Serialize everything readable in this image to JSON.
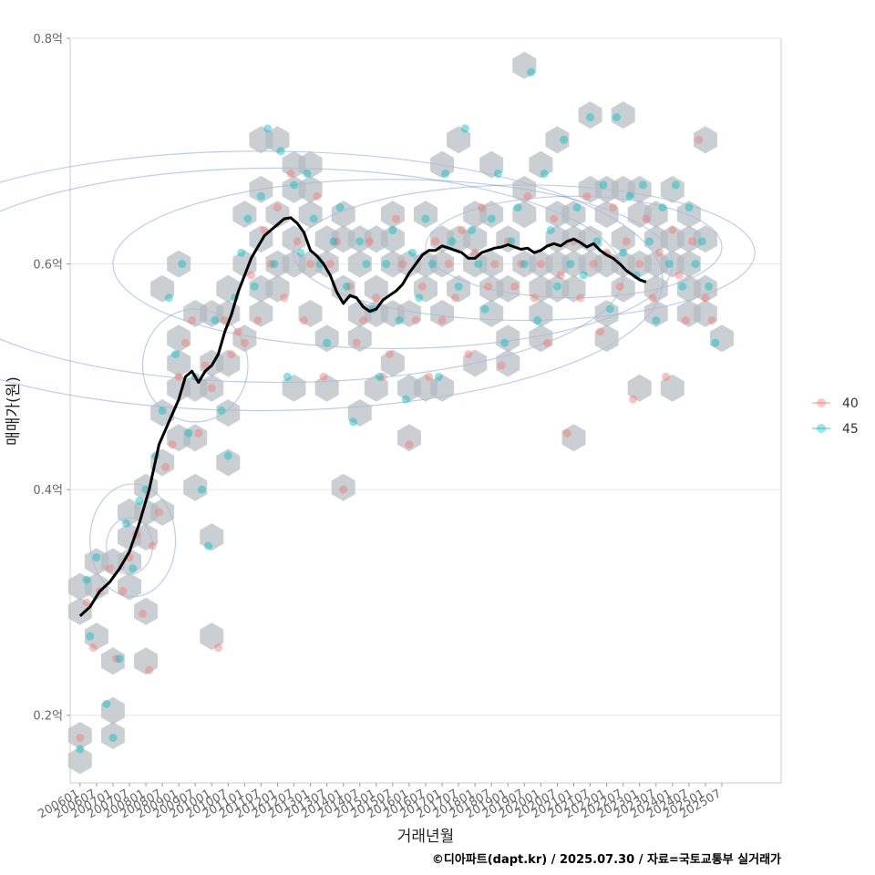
{
  "chart_data": {
    "type": "scatter",
    "title": "",
    "xlabel": "거래년월",
    "ylabel": "매매가(원)",
    "caption": "©디아파트(dapt.kr) / 2025.07.30 / 자료=국토교통부 실거래가",
    "ylim": [
      0.14,
      0.8
    ],
    "xlim": [
      2005.7,
      2027.3
    ],
    "y_ticks": [
      {
        "value": 0.2,
        "label": "0.2억"
      },
      {
        "value": 0.4,
        "label": "0.4억"
      },
      {
        "value": 0.6,
        "label": "0.6억"
      },
      {
        "value": 0.8,
        "label": "0.8억"
      }
    ],
    "x_ticks": [
      "200601",
      "200607",
      "200701",
      "200707",
      "200801",
      "200807",
      "200901",
      "200907",
      "201001",
      "201007",
      "201101",
      "201107",
      "201201",
      "201207",
      "201301",
      "201307",
      "201401",
      "201407",
      "201501",
      "201507",
      "201601",
      "201607",
      "201701",
      "201707",
      "201801",
      "201807",
      "201901",
      "201907",
      "202001",
      "202007",
      "202101",
      "202107",
      "202201",
      "202207",
      "202301",
      "202307",
      "202401",
      "202407",
      "202501",
      "202507"
    ],
    "legend": {
      "position": "right",
      "entries": [
        {
          "name": "40",
          "color": "#F8766D"
        },
        {
          "name": "45",
          "color": "#00BFC4"
        }
      ]
    },
    "series": [
      {
        "name": "40",
        "color": "#F8766D",
        "points": [
          [
            2006.0,
            0.18
          ],
          [
            2006.2,
            0.3
          ],
          [
            2006.4,
            0.26
          ],
          [
            2006.6,
            0.31
          ],
          [
            2006.9,
            0.33
          ],
          [
            2007.1,
            0.25
          ],
          [
            2007.3,
            0.31
          ],
          [
            2007.5,
            0.34
          ],
          [
            2007.7,
            0.36
          ],
          [
            2007.9,
            0.29
          ],
          [
            2008.1,
            0.24
          ],
          [
            2008.2,
            0.35
          ],
          [
            2008.4,
            0.38
          ],
          [
            2008.6,
            0.42
          ],
          [
            2008.8,
            0.44
          ],
          [
            2009.0,
            0.5
          ],
          [
            2009.2,
            0.53
          ],
          [
            2009.4,
            0.55
          ],
          [
            2009.6,
            0.45
          ],
          [
            2009.8,
            0.51
          ],
          [
            2010.0,
            0.49
          ],
          [
            2010.2,
            0.26
          ],
          [
            2010.4,
            0.55
          ],
          [
            2010.6,
            0.52
          ],
          [
            2010.8,
            0.54
          ],
          [
            2011.0,
            0.53
          ],
          [
            2011.2,
            0.59
          ],
          [
            2011.4,
            0.55
          ],
          [
            2011.6,
            0.63
          ],
          [
            2011.8,
            0.6
          ],
          [
            2012.0,
            0.65
          ],
          [
            2012.2,
            0.57
          ],
          [
            2012.4,
            0.68
          ],
          [
            2012.6,
            0.62
          ],
          [
            2012.8,
            0.55
          ],
          [
            2013.0,
            0.6
          ],
          [
            2013.2,
            0.66
          ],
          [
            2013.4,
            0.5
          ],
          [
            2013.6,
            0.6
          ],
          [
            2013.8,
            0.62
          ],
          [
            2014.0,
            0.4
          ],
          [
            2014.2,
            0.58
          ],
          [
            2014.4,
            0.53
          ],
          [
            2014.6,
            0.55
          ],
          [
            2014.8,
            0.62
          ],
          [
            2015.0,
            0.57
          ],
          [
            2015.2,
            0.5
          ],
          [
            2015.4,
            0.52
          ],
          [
            2015.6,
            0.64
          ],
          [
            2015.8,
            0.6
          ],
          [
            2016.0,
            0.44
          ],
          [
            2016.2,
            0.55
          ],
          [
            2016.4,
            0.58
          ],
          [
            2016.6,
            0.5
          ],
          [
            2016.8,
            0.62
          ],
          [
            2017.0,
            0.55
          ],
          [
            2017.2,
            0.6
          ],
          [
            2017.4,
            0.57
          ],
          [
            2017.6,
            0.63
          ],
          [
            2017.8,
            0.52
          ],
          [
            2018.0,
            0.61
          ],
          [
            2018.2,
            0.65
          ],
          [
            2018.4,
            0.58
          ],
          [
            2018.6,
            0.6
          ],
          [
            2018.8,
            0.51
          ],
          [
            2019.0,
            0.62
          ],
          [
            2019.2,
            0.58
          ],
          [
            2019.4,
            0.6
          ],
          [
            2019.6,
            0.66
          ],
          [
            2019.8,
            0.57
          ],
          [
            2020.0,
            0.6
          ],
          [
            2020.2,
            0.53
          ],
          [
            2020.4,
            0.64
          ],
          [
            2020.6,
            0.59
          ],
          [
            2020.8,
            0.45
          ],
          [
            2021.0,
            0.62
          ],
          [
            2021.2,
            0.57
          ],
          [
            2021.4,
            0.66
          ],
          [
            2021.6,
            0.6
          ],
          [
            2021.8,
            0.54
          ],
          [
            2022.0,
            0.61
          ],
          [
            2022.2,
            0.65
          ],
          [
            2022.4,
            0.58
          ],
          [
            2022.6,
            0.62
          ],
          [
            2022.8,
            0.48
          ],
          [
            2023.0,
            0.6
          ],
          [
            2023.2,
            0.64
          ],
          [
            2023.4,
            0.57
          ],
          [
            2023.6,
            0.61
          ],
          [
            2023.8,
            0.5
          ],
          [
            2024.0,
            0.63
          ],
          [
            2024.2,
            0.59
          ],
          [
            2024.4,
            0.55
          ],
          [
            2024.6,
            0.62
          ],
          [
            2024.8,
            0.71
          ],
          [
            2025.0,
            0.57
          ],
          [
            2025.2,
            0.55
          ]
        ]
      },
      {
        "name": "45",
        "color": "#00BFC4",
        "points": [
          [
            2006.0,
            0.17
          ],
          [
            2006.2,
            0.32
          ],
          [
            2006.3,
            0.27
          ],
          [
            2006.5,
            0.34
          ],
          [
            2006.8,
            0.21
          ],
          [
            2007.0,
            0.18
          ],
          [
            2007.2,
            0.25
          ],
          [
            2007.4,
            0.37
          ],
          [
            2007.6,
            0.33
          ],
          [
            2007.8,
            0.39
          ],
          [
            2008.0,
            0.4
          ],
          [
            2008.3,
            0.43
          ],
          [
            2008.5,
            0.47
          ],
          [
            2008.7,
            0.57
          ],
          [
            2008.9,
            0.52
          ],
          [
            2009.1,
            0.6
          ],
          [
            2009.3,
            0.45
          ],
          [
            2009.5,
            0.5
          ],
          [
            2009.7,
            0.4
          ],
          [
            2009.9,
            0.35
          ],
          [
            2010.1,
            0.55
          ],
          [
            2010.3,
            0.47
          ],
          [
            2010.5,
            0.43
          ],
          [
            2010.7,
            0.57
          ],
          [
            2010.9,
            0.61
          ],
          [
            2011.1,
            0.64
          ],
          [
            2011.3,
            0.58
          ],
          [
            2011.5,
            0.66
          ],
          [
            2011.7,
            0.72
          ],
          [
            2011.9,
            0.6
          ],
          [
            2012.1,
            0.7
          ],
          [
            2012.3,
            0.5
          ],
          [
            2012.5,
            0.67
          ],
          [
            2012.7,
            0.61
          ],
          [
            2012.9,
            0.68
          ],
          [
            2013.1,
            0.64
          ],
          [
            2013.3,
            0.6
          ],
          [
            2013.5,
            0.53
          ],
          [
            2013.7,
            0.62
          ],
          [
            2013.9,
            0.65
          ],
          [
            2014.1,
            0.58
          ],
          [
            2014.3,
            0.46
          ],
          [
            2014.5,
            0.62
          ],
          [
            2014.7,
            0.6
          ],
          [
            2014.9,
            0.56
          ],
          [
            2015.1,
            0.5
          ],
          [
            2015.3,
            0.6
          ],
          [
            2015.5,
            0.63
          ],
          [
            2015.7,
            0.55
          ],
          [
            2015.9,
            0.48
          ],
          [
            2016.1,
            0.61
          ],
          [
            2016.3,
            0.57
          ],
          [
            2016.5,
            0.64
          ],
          [
            2016.7,
            0.6
          ],
          [
            2016.9,
            0.5
          ],
          [
            2017.1,
            0.68
          ],
          [
            2017.3,
            0.62
          ],
          [
            2017.5,
            0.58
          ],
          [
            2017.7,
            0.72
          ],
          [
            2017.9,
            0.63
          ],
          [
            2018.1,
            0.6
          ],
          [
            2018.3,
            0.56
          ],
          [
            2018.5,
            0.64
          ],
          [
            2018.7,
            0.68
          ],
          [
            2018.9,
            0.53
          ],
          [
            2019.1,
            0.62
          ],
          [
            2019.3,
            0.65
          ],
          [
            2019.5,
            0.6
          ],
          [
            2019.7,
            0.77
          ],
          [
            2019.9,
            0.55
          ],
          [
            2020.1,
            0.68
          ],
          [
            2020.3,
            0.63
          ],
          [
            2020.5,
            0.58
          ],
          [
            2020.7,
            0.71
          ],
          [
            2020.9,
            0.6
          ],
          [
            2021.1,
            0.65
          ],
          [
            2021.3,
            0.59
          ],
          [
            2021.5,
            0.73
          ],
          [
            2021.7,
            0.62
          ],
          [
            2021.9,
            0.67
          ],
          [
            2022.1,
            0.56
          ],
          [
            2022.3,
            0.73
          ],
          [
            2022.5,
            0.61
          ],
          [
            2022.7,
            0.66
          ],
          [
            2022.9,
            0.59
          ],
          [
            2023.1,
            0.67
          ],
          [
            2023.3,
            0.62
          ],
          [
            2023.5,
            0.55
          ],
          [
            2023.7,
            0.65
          ],
          [
            2023.9,
            0.6
          ],
          [
            2024.1,
            0.67
          ],
          [
            2024.3,
            0.58
          ],
          [
            2024.5,
            0.65
          ],
          [
            2024.7,
            0.6
          ],
          [
            2024.9,
            0.62
          ],
          [
            2025.1,
            0.58
          ],
          [
            2025.3,
            0.53
          ]
        ]
      }
    ],
    "trend_line": {
      "name": "moving-average",
      "color": "#000000",
      "points": [
        [
          2006.0,
          0.288
        ],
        [
          2006.3,
          0.296
        ],
        [
          2006.6,
          0.31
        ],
        [
          2006.9,
          0.318
        ],
        [
          2007.2,
          0.33
        ],
        [
          2007.5,
          0.345
        ],
        [
          2007.8,
          0.37
        ],
        [
          2008.1,
          0.4
        ],
        [
          2008.4,
          0.44
        ],
        [
          2008.7,
          0.46
        ],
        [
          2009.0,
          0.48
        ],
        [
          2009.2,
          0.5
        ],
        [
          2009.4,
          0.505
        ],
        [
          2009.6,
          0.495
        ],
        [
          2009.8,
          0.505
        ],
        [
          2010.0,
          0.51
        ],
        [
          2010.2,
          0.52
        ],
        [
          2010.4,
          0.54
        ],
        [
          2010.6,
          0.555
        ],
        [
          2010.8,
          0.575
        ],
        [
          2011.0,
          0.59
        ],
        [
          2011.2,
          0.605
        ],
        [
          2011.4,
          0.615
        ],
        [
          2011.6,
          0.625
        ],
        [
          2011.8,
          0.63
        ],
        [
          2012.0,
          0.635
        ],
        [
          2012.2,
          0.64
        ],
        [
          2012.4,
          0.641
        ],
        [
          2012.6,
          0.636
        ],
        [
          2012.8,
          0.628
        ],
        [
          2013.0,
          0.612
        ],
        [
          2013.2,
          0.607
        ],
        [
          2013.4,
          0.6
        ],
        [
          2013.6,
          0.59
        ],
        [
          2013.8,
          0.575
        ],
        [
          2014.0,
          0.565
        ],
        [
          2014.2,
          0.572
        ],
        [
          2014.4,
          0.57
        ],
        [
          2014.6,
          0.562
        ],
        [
          2014.8,
          0.558
        ],
        [
          2015.0,
          0.56
        ],
        [
          2015.2,
          0.568
        ],
        [
          2015.4,
          0.572
        ],
        [
          2015.6,
          0.576
        ],
        [
          2015.8,
          0.582
        ],
        [
          2016.0,
          0.592
        ],
        [
          2016.2,
          0.6
        ],
        [
          2016.4,
          0.608
        ],
        [
          2016.6,
          0.612
        ],
        [
          2016.8,
          0.612
        ],
        [
          2017.0,
          0.616
        ],
        [
          2017.2,
          0.614
        ],
        [
          2017.4,
          0.612
        ],
        [
          2017.6,
          0.61
        ],
        [
          2017.8,
          0.605
        ],
        [
          2018.0,
          0.605
        ],
        [
          2018.2,
          0.61
        ],
        [
          2018.4,
          0.612
        ],
        [
          2018.6,
          0.614
        ],
        [
          2018.8,
          0.615
        ],
        [
          2019.0,
          0.617
        ],
        [
          2019.2,
          0.615
        ],
        [
          2019.4,
          0.613
        ],
        [
          2019.6,
          0.614
        ],
        [
          2019.8,
          0.61
        ],
        [
          2020.0,
          0.612
        ],
        [
          2020.2,
          0.616
        ],
        [
          2020.4,
          0.618
        ],
        [
          2020.6,
          0.616
        ],
        [
          2020.8,
          0.62
        ],
        [
          2021.0,
          0.622
        ],
        [
          2021.2,
          0.619
        ],
        [
          2021.4,
          0.615
        ],
        [
          2021.6,
          0.618
        ],
        [
          2021.8,
          0.612
        ],
        [
          2022.0,
          0.608
        ],
        [
          2022.2,
          0.605
        ],
        [
          2022.4,
          0.6
        ],
        [
          2022.6,
          0.594
        ],
        [
          2022.8,
          0.59
        ],
        [
          2023.0,
          0.586
        ],
        [
          2023.2,
          0.584
        ]
      ]
    }
  }
}
